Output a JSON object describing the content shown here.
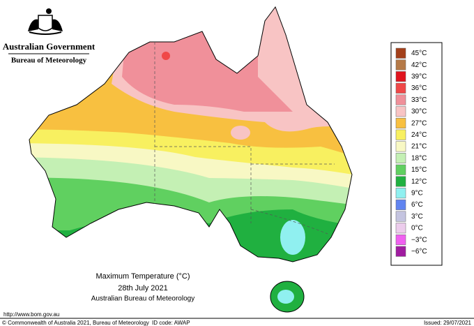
{
  "header": {
    "government": "Australian Government",
    "bureau": "Bureau of Meteorology"
  },
  "caption": {
    "title": "Maximum Temperature (°C)",
    "date": "28th July 2021",
    "source": "Australian Bureau of Meteorology"
  },
  "legend": [
    {
      "label": "45°C",
      "color": "#a3401a"
    },
    {
      "label": "42°C",
      "color": "#b57a48"
    },
    {
      "label": "39°C",
      "color": "#e0141e"
    },
    {
      "label": "36°C",
      "color": "#f04848"
    },
    {
      "label": "33°C",
      "color": "#f0909a"
    },
    {
      "label": "30°C",
      "color": "#f8c4c4"
    },
    {
      "label": "27°C",
      "color": "#f8c040"
    },
    {
      "label": "24°C",
      "color": "#f8f060"
    },
    {
      "label": "21°C",
      "color": "#f8f8c4"
    },
    {
      "label": "18°C",
      "color": "#c4f0b4"
    },
    {
      "label": "15°C",
      "color": "#60d060"
    },
    {
      "label": "12°C",
      "color": "#20b040"
    },
    {
      "label": "9°C",
      "color": "#90f0f0"
    },
    {
      "label": "6°C",
      "color": "#6084f0"
    },
    {
      "label": "3°C",
      "color": "#c4c4e0"
    },
    {
      "label": "0°C",
      "color": "#ecccec"
    },
    {
      "label": "−3°C",
      "color": "#f060f0"
    },
    {
      "label": "−6°C",
      "color": "#a01ca0"
    }
  ],
  "footer": {
    "url": "http://www.bom.gov.au",
    "copyright": "© Commonwealth of Australia 2021, Bureau of Meteorology",
    "id_code": "ID code: AWAP",
    "issued": "Issued: 29/07/2021"
  }
}
